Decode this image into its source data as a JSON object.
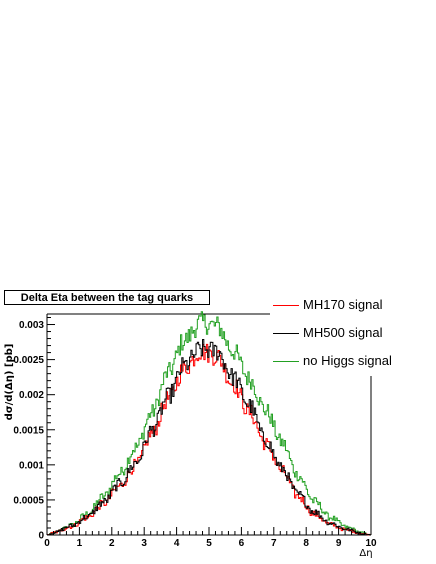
{
  "chart_data": {
    "type": "line",
    "title": "Delta Eta between the tag quarks",
    "xlabel": "Δη",
    "ylabel": "dσ/d(Δη) [pb]",
    "xlim": [
      0,
      10
    ],
    "ylim": [
      0,
      0.00315
    ],
    "x_ticks": [
      "0",
      "1",
      "2",
      "3",
      "4",
      "5",
      "6",
      "7",
      "8",
      "9",
      "10"
    ],
    "y_ticks": [
      {
        "value": 0,
        "label": "0"
      },
      {
        "value": 0.0005,
        "label": "0.0005"
      },
      {
        "value": 0.001,
        "label": "0.001"
      },
      {
        "value": 0.0015,
        "label": "0.0015"
      },
      {
        "value": 0.002,
        "label": "0.002"
      },
      {
        "value": 0.0025,
        "label": "0.0025"
      },
      {
        "value": 0.003,
        "label": "0.003"
      }
    ],
    "grid": false,
    "legend_position": "top-right",
    "x": [
      0.25,
      0.75,
      1.25,
      1.75,
      2.25,
      2.75,
      3.25,
      3.75,
      4.25,
      4.75,
      5.25,
      5.75,
      6.25,
      6.75,
      7.25,
      7.75,
      8.25,
      8.75,
      9.25,
      9.75
    ],
    "series": [
      {
        "name": "MH170 signal",
        "color": "#ff0000",
        "values": [
          4e-05,
          0.00012,
          0.00025,
          0.00045,
          0.0007,
          0.001,
          0.00145,
          0.00195,
          0.00238,
          0.00262,
          0.00255,
          0.00215,
          0.00175,
          0.0013,
          0.00092,
          0.00055,
          0.0003,
          0.00015,
          7e-05,
          2e-05
        ]
      },
      {
        "name": "MH500 signal",
        "color": "#000000",
        "values": [
          4e-05,
          0.00013,
          0.00026,
          0.00047,
          0.00073,
          0.00103,
          0.0015,
          0.00198,
          0.00242,
          0.00265,
          0.00262,
          0.00225,
          0.00185,
          0.00135,
          0.00095,
          0.00058,
          0.00033,
          0.00017,
          8e-05,
          2e-05
        ]
      },
      {
        "name": "no Higgs signal",
        "color": "#22a022",
        "values": [
          4e-05,
          0.00014,
          0.0003,
          0.00055,
          0.00088,
          0.00125,
          0.00175,
          0.00232,
          0.00278,
          0.00303,
          0.00298,
          0.00262,
          0.00222,
          0.00178,
          0.00132,
          0.00085,
          0.00048,
          0.00025,
          0.00011,
          3e-05
        ]
      }
    ]
  }
}
